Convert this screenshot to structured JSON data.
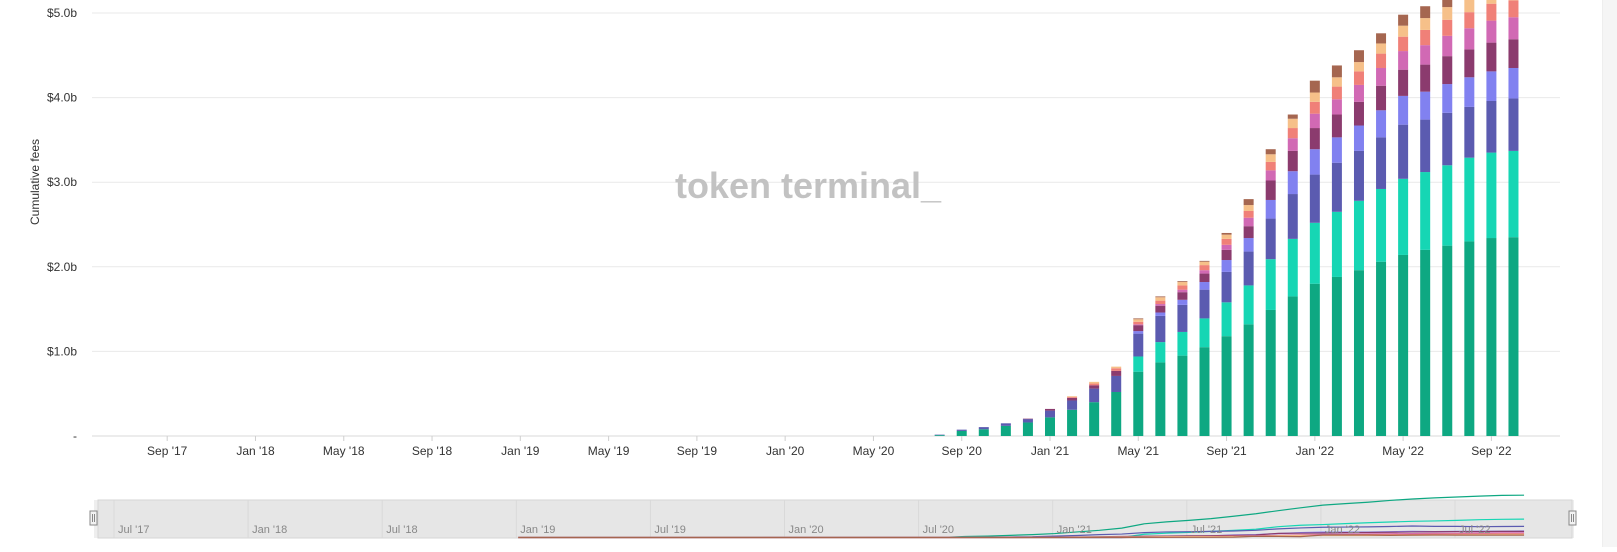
{
  "chart_data": {
    "type": "bar",
    "stacked": true,
    "ylabel": "Cumulative fees",
    "xlabel": "",
    "ylim": [
      0,
      5.1
    ],
    "y_unit": "billion USD",
    "y_ticks": [
      {
        "value": 0,
        "label": "-"
      },
      {
        "value": 1,
        "label": "$1.0b"
      },
      {
        "value": 2,
        "label": "$2.0b"
      },
      {
        "value": 3,
        "label": "$3.0b"
      },
      {
        "value": 4,
        "label": "$4.0b"
      },
      {
        "value": 5,
        "label": "$5.0b"
      }
    ],
    "x_tick_labels": [
      "Sep '17",
      "Jan '18",
      "May '18",
      "Sep '18",
      "Jan '19",
      "May '19",
      "Sep '19",
      "Jan '20",
      "May '20",
      "Sep '20",
      "Jan '21",
      "May '21",
      "Sep '21",
      "Jan '22",
      "May '22",
      "Sep '22"
    ],
    "x_range": [
      "Jun '17",
      "Oct '22"
    ],
    "grid": true,
    "legend": "none",
    "watermark": "token terminal_",
    "series_colors": [
      "#0ea882",
      "#16d6b4",
      "#5b5bb0",
      "#8181f0",
      "#8b3b6e",
      "#d169b4",
      "#f08078",
      "#f6c089",
      "#a56650"
    ],
    "bars": [
      {
        "date": "Aug '20",
        "values": [
          0.01,
          0,
          0.006,
          0,
          0,
          0,
          0,
          0,
          0
        ]
      },
      {
        "date": "Sep '20",
        "values": [
          0.06,
          0,
          0.015,
          0,
          0,
          0,
          0,
          0,
          0
        ]
      },
      {
        "date": "Oct '20",
        "values": [
          0.08,
          0,
          0.025,
          0,
          0,
          0,
          0,
          0,
          0
        ]
      },
      {
        "date": "Nov '20",
        "values": [
          0.12,
          0,
          0.03,
          0,
          0,
          0,
          0,
          0,
          0
        ]
      },
      {
        "date": "Dec '20",
        "values": [
          0.16,
          0,
          0.04,
          0,
          0.005,
          0,
          0,
          0,
          0
        ]
      },
      {
        "date": "Jan '21",
        "values": [
          0.22,
          0,
          0.08,
          0,
          0.02,
          0,
          0,
          0,
          0
        ]
      },
      {
        "date": "Feb '21",
        "values": [
          0.31,
          0,
          0.11,
          0,
          0.03,
          0,
          0.01,
          0.01,
          0
        ]
      },
      {
        "date": "Mar '21",
        "values": [
          0.4,
          0,
          0.16,
          0,
          0.04,
          0,
          0.02,
          0.02,
          0
        ]
      },
      {
        "date": "Apr '21",
        "values": [
          0.52,
          0,
          0.19,
          0,
          0.06,
          0,
          0.03,
          0.02,
          0
        ]
      },
      {
        "date": "May '21",
        "values": [
          0.76,
          0.18,
          0.27,
          0.03,
          0.07,
          0.01,
          0.03,
          0.03,
          0.01
        ]
      },
      {
        "date": "Jun '21",
        "values": [
          0.87,
          0.24,
          0.31,
          0.04,
          0.08,
          0.02,
          0.04,
          0.04,
          0.01
        ]
      },
      {
        "date": "Jul '21",
        "values": [
          0.95,
          0.28,
          0.32,
          0.06,
          0.09,
          0.03,
          0.05,
          0.04,
          0.01
        ]
      },
      {
        "date": "Aug '21",
        "values": [
          1.05,
          0.34,
          0.34,
          0.09,
          0.1,
          0.04,
          0.06,
          0.04,
          0.01
        ]
      },
      {
        "date": "Sep '21",
        "values": [
          1.18,
          0.4,
          0.36,
          0.14,
          0.12,
          0.06,
          0.07,
          0.05,
          0.02
        ]
      },
      {
        "date": "Oct '21",
        "values": [
          1.32,
          0.46,
          0.4,
          0.16,
          0.14,
          0.1,
          0.08,
          0.07,
          0.07
        ]
      },
      {
        "date": "Nov '21",
        "values": [
          1.49,
          0.6,
          0.48,
          0.22,
          0.23,
          0.12,
          0.1,
          0.09,
          0.06
        ]
      },
      {
        "date": "Dec '21",
        "values": [
          1.65,
          0.68,
          0.53,
          0.27,
          0.24,
          0.15,
          0.12,
          0.11,
          0.05
        ]
      },
      {
        "date": "Jan '22",
        "values": [
          1.8,
          0.72,
          0.57,
          0.3,
          0.25,
          0.17,
          0.14,
          0.11,
          0.14
        ]
      },
      {
        "date": "Feb '22",
        "values": [
          1.88,
          0.77,
          0.58,
          0.3,
          0.27,
          0.18,
          0.15,
          0.11,
          0.14
        ]
      },
      {
        "date": "Mar '22",
        "values": [
          1.96,
          0.82,
          0.59,
          0.3,
          0.28,
          0.2,
          0.16,
          0.11,
          0.14
        ]
      },
      {
        "date": "Apr '22",
        "values": [
          2.06,
          0.86,
          0.61,
          0.32,
          0.29,
          0.21,
          0.17,
          0.12,
          0.12
        ]
      },
      {
        "date": "May '22",
        "values": [
          2.14,
          0.9,
          0.64,
          0.34,
          0.31,
          0.22,
          0.17,
          0.13,
          0.13
        ]
      },
      {
        "date": "Jun '22",
        "values": [
          2.2,
          0.92,
          0.62,
          0.33,
          0.32,
          0.23,
          0.18,
          0.14,
          0.14
        ]
      },
      {
        "date": "Jul '22",
        "values": [
          2.25,
          0.95,
          0.62,
          0.34,
          0.33,
          0.24,
          0.19,
          0.15,
          0.13
        ]
      },
      {
        "date": "Aug '22",
        "values": [
          2.3,
          0.99,
          0.6,
          0.35,
          0.33,
          0.25,
          0.19,
          0.16,
          0.13
        ]
      },
      {
        "date": "Sep '22",
        "values": [
          2.34,
          1.01,
          0.61,
          0.35,
          0.34,
          0.26,
          0.2,
          0.16,
          0.13
        ]
      },
      {
        "date": "Oct '22",
        "values": [
          2.35,
          1.02,
          0.62,
          0.36,
          0.34,
          0.26,
          0.2,
          0.16,
          0.13
        ]
      }
    ]
  },
  "navigator": {
    "tick_labels": [
      "Jul '17",
      "Jan '18",
      "Jul '18",
      "Jan '19",
      "Jul '19",
      "Jan '20",
      "Jul '20",
      "Jan '21",
      "Jul '21",
      "Jan '22",
      "Jul '22"
    ]
  }
}
